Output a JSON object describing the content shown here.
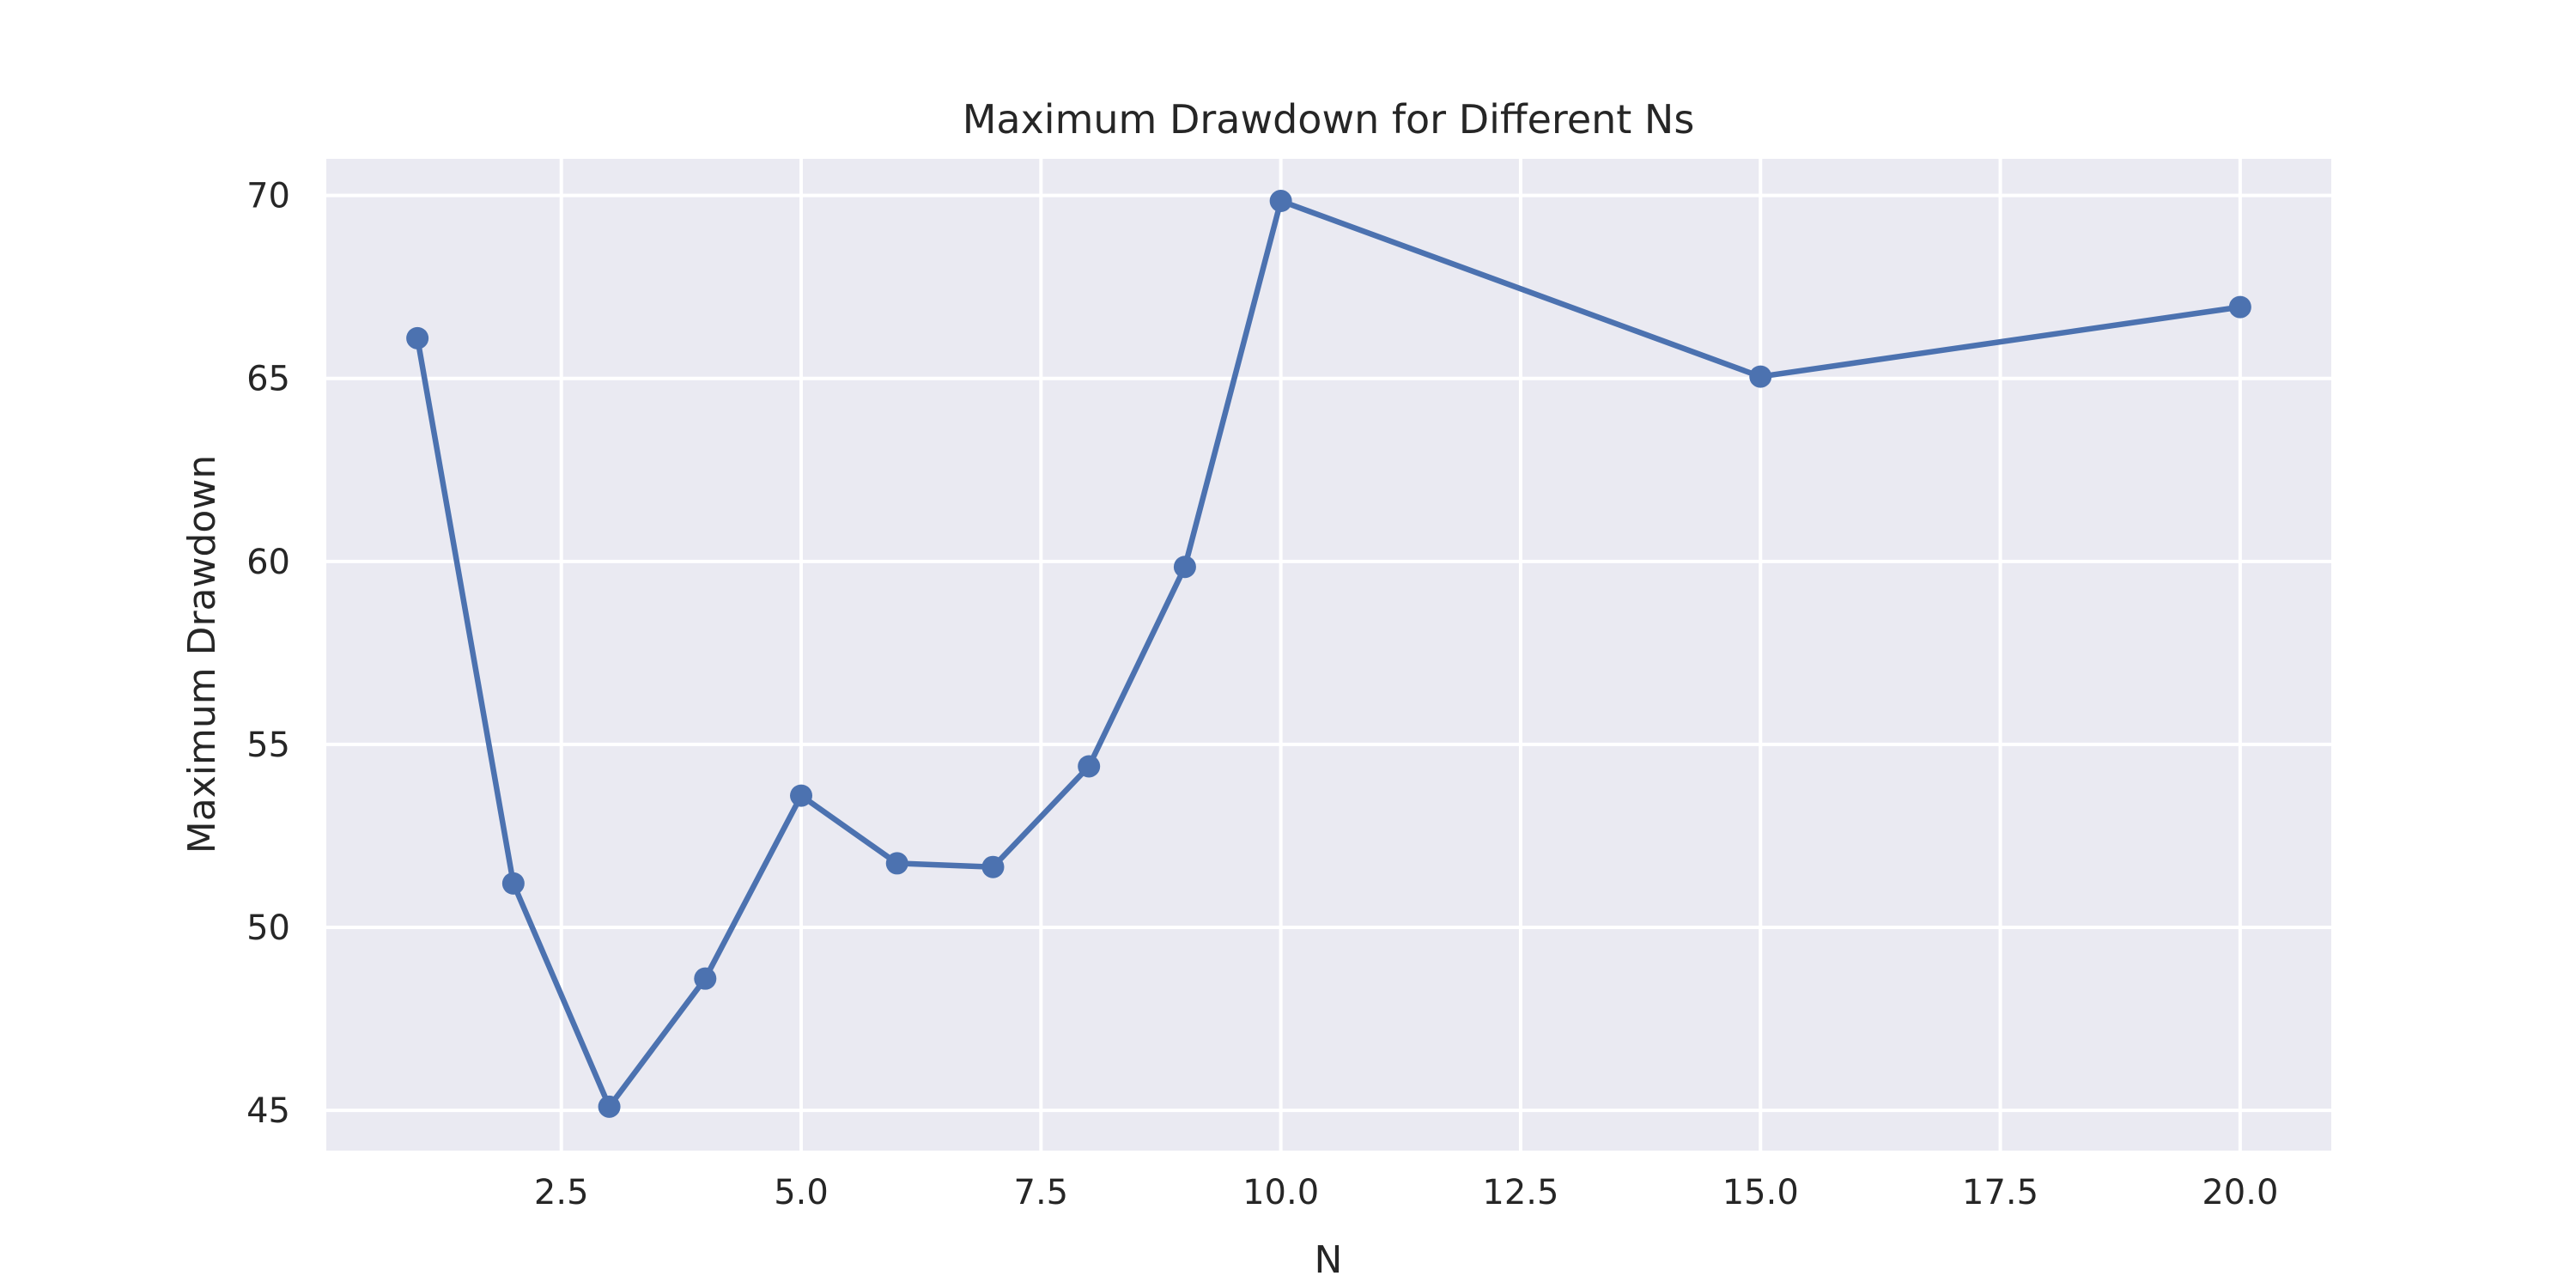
{
  "chart_data": {
    "type": "line",
    "title": "Maximum Drawdown for Different Ns",
    "xlabel": "N",
    "ylabel": "Maximum Drawdown",
    "xlim": [
      0.05,
      20.95
    ],
    "ylim": [
      43.9,
      71.0
    ],
    "xticks": [
      2.5,
      5.0,
      7.5,
      10.0,
      12.5,
      15.0,
      17.5,
      20.0
    ],
    "xtick_labels": [
      "2.5",
      "5.0",
      "7.5",
      "10.0",
      "12.5",
      "15.0",
      "17.5",
      "20.0"
    ],
    "yticks": [
      45,
      50,
      55,
      60,
      65,
      70
    ],
    "ytick_labels": [
      "45",
      "50",
      "55",
      "60",
      "65",
      "70"
    ],
    "grid": true,
    "legend": "none",
    "colors": {
      "line": "#4c72b0",
      "plot_background": "#eaeaf2",
      "grid": "#ffffff"
    },
    "series": [
      {
        "x": [
          1,
          2,
          3,
          4,
          5,
          6,
          7,
          8,
          9,
          10,
          15,
          20
        ],
        "y": [
          66.1,
          51.2,
          45.1,
          48.6,
          53.6,
          51.75,
          51.65,
          54.4,
          59.85,
          69.85,
          65.05,
          66.95
        ]
      }
    ]
  }
}
